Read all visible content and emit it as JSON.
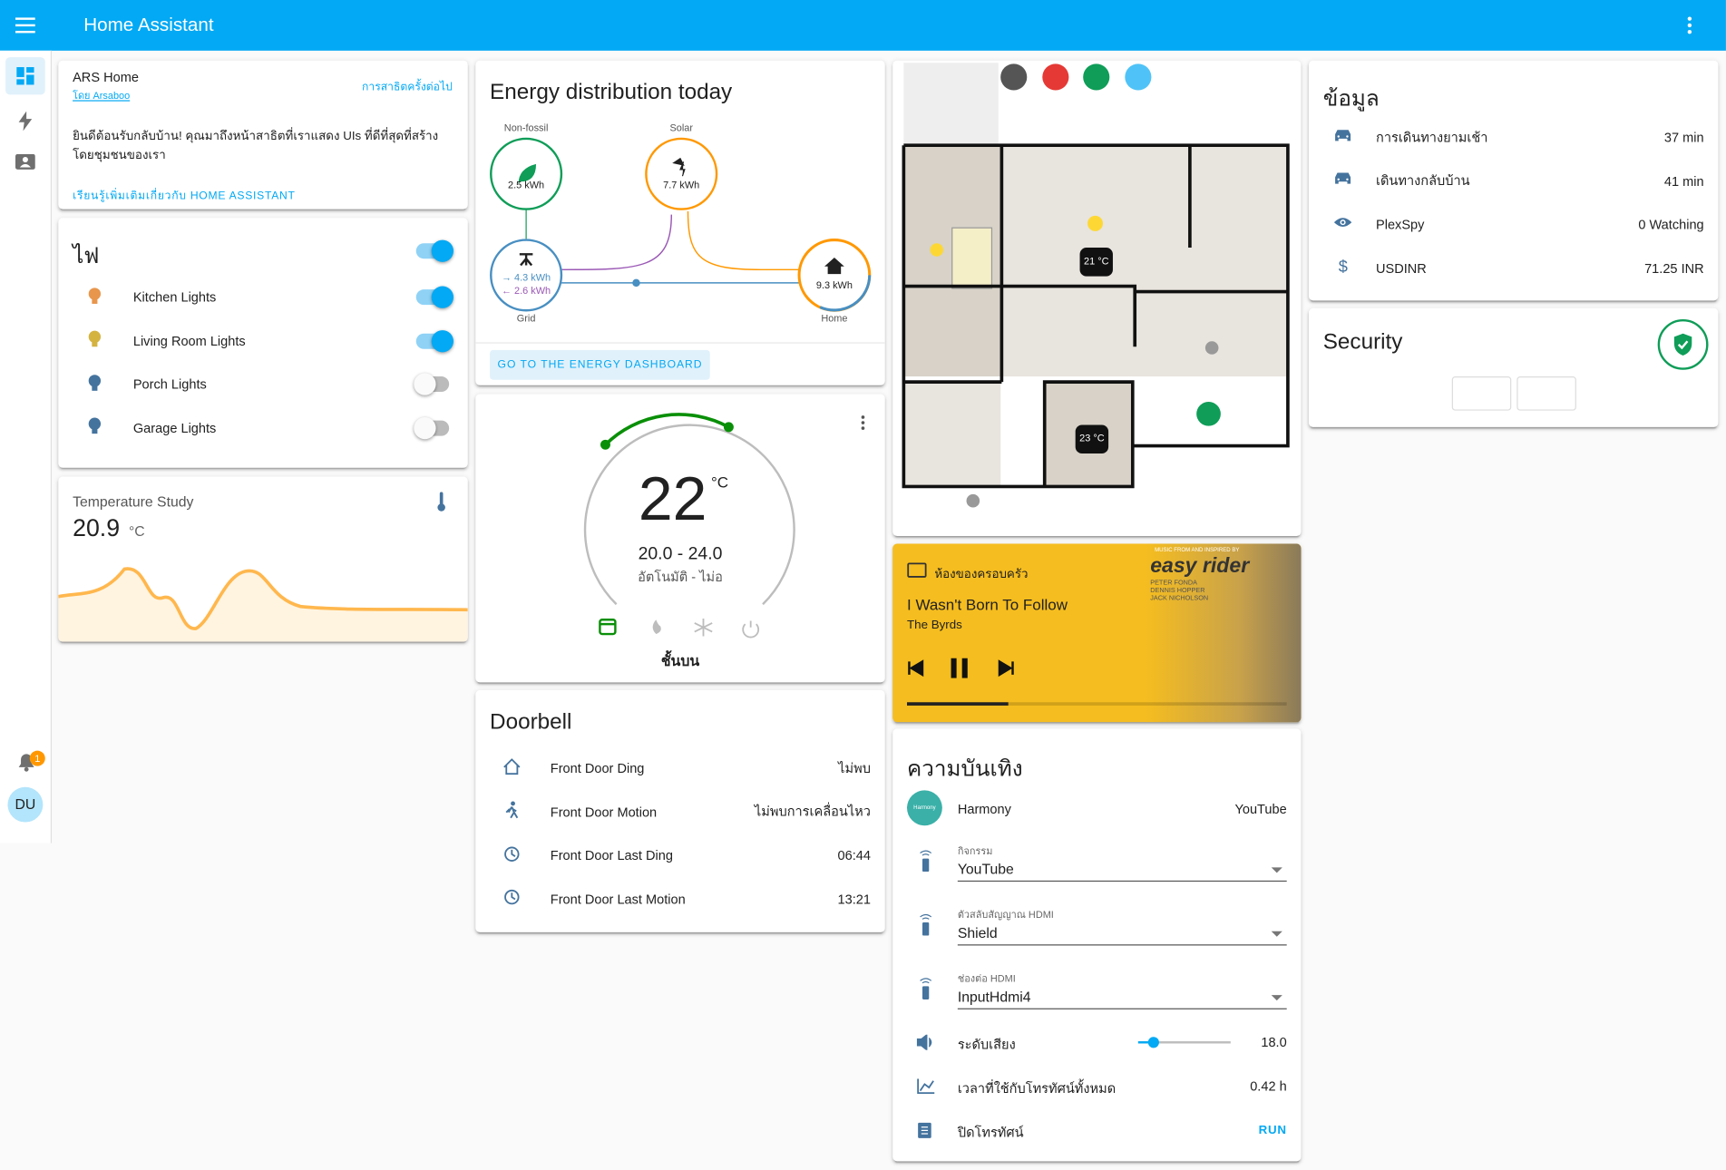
{
  "app": {
    "title": "Home Assistant"
  },
  "sidebar": {
    "notification_count": "1",
    "user_initials": "DU"
  },
  "welcome": {
    "title": "ARS Home",
    "author": "โดย Arsaboo",
    "link": "การสาธิตครั้งต่อไป",
    "message": "ยินดีต้อนรับกลับบ้าน! คุณมาถึงหน้าสาธิตที่เราแสดง UIs ที่ดีที่สุดที่สร้างโดยชุมชนของเรา",
    "learn_more": "เรียนรู้เพิ่มเติมเกี่ยวกับ HOME ASSISTANT"
  },
  "lights": {
    "title": "ไฟ",
    "master_on": true,
    "entities": [
      {
        "name": "Kitchen Lights",
        "on": true,
        "color": "#e8964c"
      },
      {
        "name": "Living Room Lights",
        "on": true,
        "color": "#d4b341"
      },
      {
        "name": "Porch Lights",
        "on": false,
        "color": "#44739e"
      },
      {
        "name": "Garage Lights",
        "on": false,
        "color": "#44739e"
      }
    ]
  },
  "temperature": {
    "title": "Temperature Study",
    "value": "20.9",
    "unit": "°C"
  },
  "energy": {
    "title": "Energy distribution today",
    "non_fossil": {
      "label": "Non-fossil",
      "value": "2.5 kWh"
    },
    "solar": {
      "label": "Solar",
      "value": "7.7 kWh"
    },
    "grid": {
      "label": "Grid",
      "import": "→ 4.3 kWh",
      "export": "← 2.6 kWh"
    },
    "home": {
      "label": "Home",
      "value": "9.3 kWh"
    },
    "button": "GO TO THE ENERGY DASHBOARD"
  },
  "thermostat": {
    "temperature": "22",
    "unit": "°C",
    "range": "20.0 - 24.0",
    "mode": "อัตโนมัติ - ไม่อ",
    "name": "ชั้นบน"
  },
  "doorbell": {
    "title": "Doorbell",
    "rows": [
      {
        "name": "Front Door Ding",
        "state": "ไม่พบ"
      },
      {
        "name": "Front Door Motion",
        "state": "ไม่พบการเคลื่อนไหว"
      },
      {
        "name": "Front Door Last Ding",
        "state": "06:44"
      },
      {
        "name": "Front Door Last Motion",
        "state": "13:21"
      }
    ]
  },
  "floorplan": {
    "temp_1": "21 °C",
    "temp_2": "23 °C"
  },
  "media": {
    "room": "ห้องของครอบครัว",
    "track": "I Wasn't Born To Follow",
    "artist": "The Byrds",
    "album_art": {
      "header": "MUSIC FROM AND INSPIRED BY",
      "title": "easy rider",
      "cast": [
        "PETER FONDA",
        "DENNIS HOPPER",
        "JACK NICHOLSON"
      ]
    }
  },
  "entertainment": {
    "title": "ความบันเทิง",
    "harmony": {
      "name": "Harmony",
      "state": "YouTube",
      "badge": "Harmony"
    },
    "selects": [
      {
        "label": "กิจกรรม",
        "value": "YouTube"
      },
      {
        "label": "ตัวสลับสัญญาณ HDMI",
        "value": "Shield"
      },
      {
        "label": "ช่องต่อ HDMI",
        "value": "InputHdmi4"
      }
    ],
    "volume": {
      "label": "ระดับเสียง",
      "value": "18.0"
    },
    "tv_time": {
      "label": "เวลาที่ใช้กับโทรทัศน์ทั้งหมด",
      "value": "0.42 h"
    },
    "tv_off": {
      "label": "ปิดโทรทัศน์",
      "action": "RUN"
    }
  },
  "info": {
    "title": "ข้อมูล",
    "rows": [
      {
        "name": "การเดินทางยามเช้า",
        "state": "37 min",
        "icon": "car"
      },
      {
        "name": "เดินทางกลับบ้าน",
        "state": "41 min",
        "icon": "car"
      },
      {
        "name": "PlexSpy",
        "state": "0 Watching",
        "icon": "eye"
      },
      {
        "name": "USDINR",
        "state": "71.25 INR",
        "icon": "dollar"
      }
    ]
  },
  "security": {
    "title": "Security"
  }
}
